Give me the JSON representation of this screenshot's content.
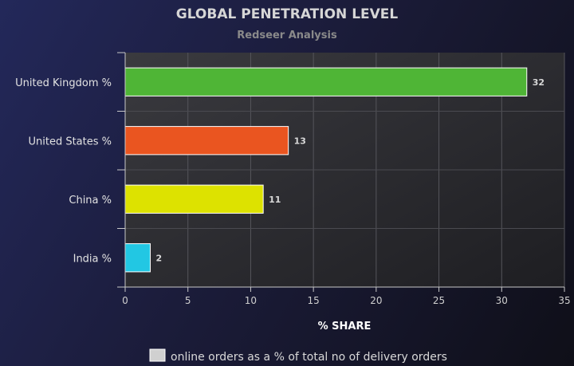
{
  "chart_data": {
    "type": "bar",
    "orientation": "horizontal",
    "title": "GLOBAL PENETRATION LEVEL",
    "subtitle": "Redseer Analysis",
    "xlabel": "% SHARE",
    "ylabel": "",
    "categories": [
      "United Kingdom %",
      "United States %",
      "China %",
      "India %"
    ],
    "values": [
      32,
      13,
      11,
      2
    ],
    "bar_colors": [
      "#4fb536",
      "#ea5520",
      "#dde200",
      "#22c7e3"
    ],
    "xlim": [
      0,
      35
    ],
    "xticks": [
      0,
      5,
      10,
      15,
      20,
      25,
      30,
      35
    ],
    "grid": true,
    "legend": {
      "placement": "bottom-center",
      "entries": [
        {
          "name": "online orders as a % of total no of delivery orders",
          "color": "#d0d0d0"
        }
      ]
    }
  }
}
